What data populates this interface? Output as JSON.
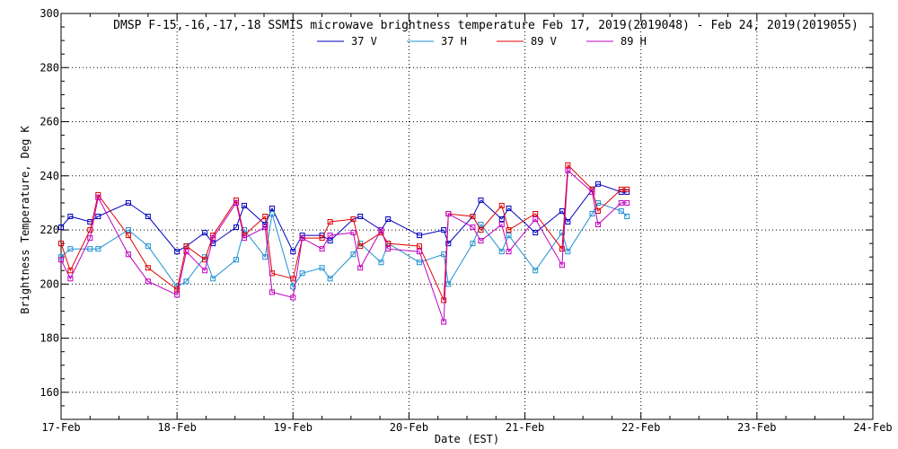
{
  "chart_data": {
    "type": "line",
    "title": "DMSP F-15,-16,-17,-18 SSMIS microwave brightness temperature Feb 17, 2019(2019048) - Feb 24, 2019(2019055)",
    "xlabel": "Date (EST)",
    "ylabel": "Brightness Temperature, Deg K",
    "x_unit": "days since Feb 17 00:00 EST",
    "xlim": [
      0,
      7
    ],
    "ylim": [
      150,
      300
    ],
    "yticks": [
      160,
      180,
      200,
      220,
      240,
      260,
      280,
      300
    ],
    "xticks": [
      {
        "value": 0,
        "label": "17-Feb"
      },
      {
        "value": 1,
        "label": "18-Feb"
      },
      {
        "value": 2,
        "label": "19-Feb"
      },
      {
        "value": 3,
        "label": "20-Feb"
      },
      {
        "value": 4,
        "label": "21-Feb"
      },
      {
        "value": 5,
        "label": "22-Feb"
      },
      {
        "value": 6,
        "label": "23-Feb"
      },
      {
        "value": 7,
        "label": "24-Feb"
      }
    ],
    "grid": true,
    "legend_position": "top-center",
    "x": [
      0.0,
      0.08,
      0.25,
      0.32,
      0.58,
      0.75,
      1.0,
      1.08,
      1.24,
      1.31,
      1.51,
      1.58,
      1.76,
      1.82,
      2.0,
      2.08,
      2.25,
      2.32,
      2.52,
      2.58,
      2.76,
      2.82,
      3.09,
      3.3,
      3.34,
      3.55,
      3.62,
      3.8,
      3.86,
      4.09,
      4.32,
      4.37,
      4.58,
      4.63,
      4.83,
      4.88
    ],
    "series": [
      {
        "name": "37 V",
        "color": "#0000c0",
        "values": [
          221,
          225,
          223,
          225,
          230,
          225,
          212,
          214,
          219,
          215,
          221,
          229,
          222,
          228,
          212,
          218,
          218,
          216,
          224,
          225,
          220,
          224,
          218,
          220,
          215,
          225,
          231,
          224,
          228,
          219,
          227,
          223,
          235,
          237,
          234,
          234
        ]
      },
      {
        "name": "37 H",
        "color": "#1e90d0",
        "values": [
          210,
          213,
          213,
          213,
          220,
          214,
          199,
          201,
          210,
          202,
          209,
          220,
          210,
          226,
          199,
          204,
          206,
          202,
          211,
          215,
          208,
          215,
          208,
          211,
          200,
          215,
          222,
          212,
          218,
          205,
          219,
          212,
          226,
          230,
          227,
          225
        ]
      },
      {
        "name": "89 V",
        "color": "#e00000",
        "values": [
          215,
          205,
          220,
          233,
          218,
          206,
          198,
          214,
          209,
          218,
          231,
          218,
          225,
          204,
          202,
          217,
          217,
          223,
          224,
          214,
          219,
          215,
          214,
          194,
          226,
          225,
          220,
          229,
          220,
          226,
          213,
          244,
          235,
          227,
          235,
          235
        ]
      },
      {
        "name": "89 H",
        "color": "#c000c0",
        "values": [
          209,
          202,
          217,
          232,
          211,
          201,
          196,
          212,
          205,
          217,
          230,
          217,
          221,
          197,
          195,
          217,
          213,
          218,
          219,
          206,
          220,
          213,
          212,
          186,
          226,
          221,
          216,
          222,
          212,
          224,
          207,
          242,
          234,
          222,
          230,
          230
        ]
      }
    ]
  }
}
